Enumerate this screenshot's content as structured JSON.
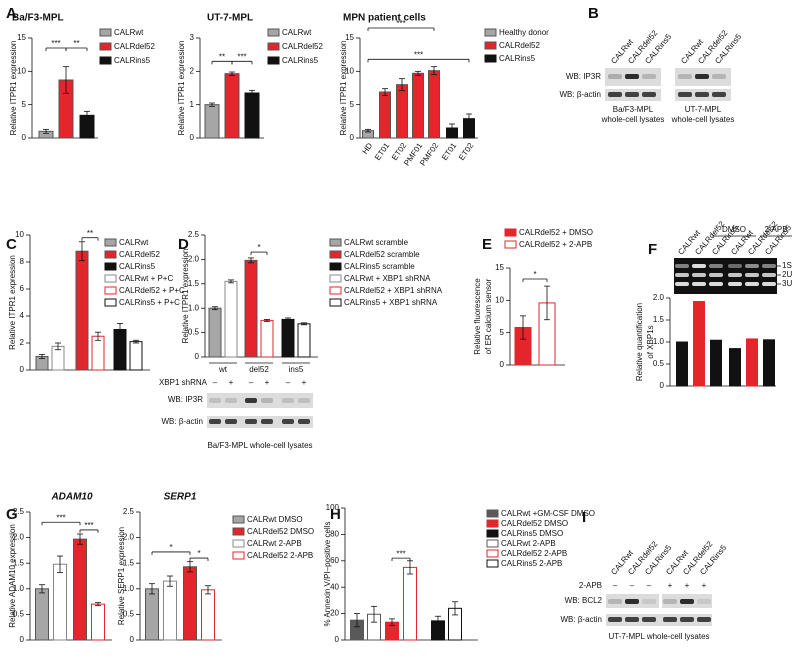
{
  "panel_letters": [
    "A",
    "B",
    "C",
    "D",
    "E",
    "F",
    "G",
    "H",
    "I"
  ],
  "chart_data": [
    {
      "type": "bar",
      "title": "Ba/F3-MPL",
      "ylabel": "Relative ITPR1 expression",
      "ylim": [
        0,
        15
      ],
      "yticks": [
        0,
        5,
        10,
        15
      ],
      "values": [
        1.0,
        8.7,
        3.4
      ],
      "errors": [
        0.3,
        2.0,
        0.6
      ],
      "fills": [
        "#a6a6a6",
        "#e3262b",
        "#111111"
      ],
      "strokes": [
        "#555555",
        "#555555",
        "#111111"
      ],
      "legend": [
        {
          "name": "CALRwt",
          "fill": "#a6a6a6",
          "stroke": "#555555"
        },
        {
          "name": "CALRdel52",
          "fill": "#e3262b",
          "stroke": "#555555"
        },
        {
          "name": "CALRins5",
          "fill": "#111111",
          "stroke": "#111111"
        }
      ],
      "brackets": [
        {
          "from": 0,
          "to": 1,
          "at": 13.5,
          "label": "***"
        },
        {
          "from": 1,
          "to": 2,
          "at": 13.5,
          "label": "**"
        }
      ]
    },
    {
      "type": "bar",
      "title": "UT-7-MPL",
      "ylabel": "Relative ITPR1 expression",
      "ylim": [
        0,
        3
      ],
      "yticks": [
        0,
        1,
        2,
        3
      ],
      "values": [
        1.0,
        1.93,
        1.35
      ],
      "errors": [
        0.05,
        0.05,
        0.08
      ],
      "fills": [
        "#a6a6a6",
        "#e3262b",
        "#111111"
      ],
      "strokes": [
        "#555555",
        "#555555",
        "#111111"
      ],
      "legend": [
        {
          "name": "CALRwt",
          "fill": "#a6a6a6",
          "stroke": "#555555"
        },
        {
          "name": "CALRdel52",
          "fill": "#e3262b",
          "stroke": "#555555"
        },
        {
          "name": "CALRins5",
          "fill": "#111111",
          "stroke": "#111111"
        }
      ],
      "brackets": [
        {
          "from": 0,
          "to": 1,
          "at": 2.3,
          "label": "**"
        },
        {
          "from": 1,
          "to": 2,
          "at": 2.3,
          "label": "***"
        }
      ]
    },
    {
      "type": "bar",
      "title": "MPN patient cells",
      "ylabel": "Relative ITPR1 expression",
      "ylim": [
        0,
        15
      ],
      "yticks": [
        0,
        5,
        10,
        15
      ],
      "categories": [
        "HD",
        "ET01",
        "ET02",
        "PMF01",
        "PMF02",
        "ET01",
        "ET02"
      ],
      "values": [
        1.1,
        6.9,
        8.0,
        9.7,
        10.1,
        1.5,
        2.9
      ],
      "errors": [
        0.2,
        0.5,
        0.9,
        0.3,
        0.6,
        0.6,
        0.7
      ],
      "fills": [
        "#a6a6a6",
        "#e3262b",
        "#e3262b",
        "#e3262b",
        "#e3262b",
        "#111111",
        "#111111"
      ],
      "strokes": [
        "#555555",
        "#555555",
        "#555555",
        "#555555",
        "#555555",
        "#111111",
        "#111111"
      ],
      "legend": [
        {
          "name": "Healthy donor",
          "fill": "#a6a6a6",
          "stroke": "#555555"
        },
        {
          "name": "CALRdel52",
          "fill": "#e3262b",
          "stroke": "#555555"
        },
        {
          "name": "CALRins5",
          "fill": "#111111",
          "stroke": "#111111"
        }
      ],
      "brackets": [
        {
          "from": 0,
          "to": 4,
          "at": 16.5,
          "label": "***"
        },
        {
          "from": 0,
          "to": 6,
          "at": 11.8,
          "label": "***"
        }
      ]
    },
    {
      "type": "bar",
      "ylabel": "Relative ITPR1 expression",
      "ylim": [
        0,
        10
      ],
      "yticks": [
        0,
        2,
        4,
        6,
        8,
        10
      ],
      "values": [
        1.0,
        1.75,
        8.8,
        2.5,
        3.0,
        2.1
      ],
      "errors": [
        0.15,
        0.25,
        0.7,
        0.3,
        0.45,
        0.1
      ],
      "fills": [
        "#a6a6a6",
        "#ffffff",
        "#e3262b",
        "#ffffff",
        "#111111",
        "#ffffff"
      ],
      "strokes": [
        "#555555",
        "#888888",
        "#555555",
        "#e3262b",
        "#111111",
        "#111111"
      ],
      "legend": [
        {
          "name": "CALRwt",
          "fill": "#a6a6a6",
          "stroke": "#555555"
        },
        {
          "name": "CALRdel52",
          "fill": "#e3262b",
          "stroke": "#555555"
        },
        {
          "name": "CALRins5",
          "fill": "#111111",
          "stroke": "#111111"
        },
        {
          "name": "CALRwt + P+C",
          "fill": "#ffffff",
          "stroke": "#888888"
        },
        {
          "name": "CALRdel52 + P+C",
          "fill": "#ffffff",
          "stroke": "#e3262b"
        },
        {
          "name": "CALRins5 + P+C",
          "fill": "#ffffff",
          "stroke": "#111111"
        }
      ],
      "brackets": [
        {
          "from": 2,
          "to": 3,
          "at": 9.8,
          "label": "**"
        }
      ]
    },
    {
      "type": "bar",
      "ylabel": "Relative ITPR1 expression",
      "ylim": [
        0,
        2.5
      ],
      "yticks": [
        0,
        0.5,
        {
          "value": 1,
          "label": "1.0"
        },
        1.5,
        {
          "value": 2,
          "label": "2.0"
        },
        2.5
      ],
      "values": [
        1.0,
        1.55,
        1.98,
        0.75,
        0.77,
        0.68
      ],
      "errors": [
        0.03,
        0.03,
        0.05,
        0.02,
        0.03,
        0.02
      ],
      "fills": [
        "#a6a6a6",
        "#ffffff",
        "#e3262b",
        "#ffffff",
        "#111111",
        "#ffffff"
      ],
      "strokes": [
        "#555555",
        "#888888",
        "#555555",
        "#e3262b",
        "#111111",
        "#111111"
      ],
      "legend": [
        {
          "name": "CALRwt scramble",
          "fill": "#a6a6a6",
          "stroke": "#555555"
        },
        {
          "name": "CALRdel52 scramble",
          "fill": "#e3262b",
          "stroke": "#555555"
        },
        {
          "name": "CALRins5 scramble",
          "fill": "#111111",
          "stroke": "#111111"
        },
        {
          "name": "CALRwt + XBP1 shRNA",
          "fill": "#ffffff",
          "stroke": "#888888"
        },
        {
          "name": "CALRdel52 + XBP1 shRNA",
          "fill": "#ffffff",
          "stroke": "#e3262b"
        },
        {
          "name": "CALRins5 + XBP1 shRNA",
          "fill": "#ffffff",
          "stroke": "#111111"
        }
      ],
      "brackets": [
        {
          "from": 2,
          "to": 3,
          "at": 2.15,
          "label": "*"
        }
      ],
      "group_labels": [
        "wt",
        "del52",
        "ins5"
      ],
      "sub_label": "XBP1 shRNA",
      "sub_signs": [
        "–",
        "+",
        "–",
        "+",
        "–",
        "+"
      ]
    },
    {
      "type": "bar",
      "ylabel": [
        "Relative fluorescence",
        "of ER calcium sensor"
      ],
      "ylim": [
        0,
        15
      ],
      "yticks": [
        0,
        5,
        10,
        15
      ],
      "values": [
        5.8,
        9.6
      ],
      "errors": [
        1.8,
        2.6
      ],
      "fills": [
        "#e3262b",
        "#ffffff"
      ],
      "strokes": [
        "#e3262b",
        "#e3262b"
      ],
      "legend": [
        {
          "name": "CALRdel52 + DMSO",
          "fill": "#e3262b",
          "stroke": "#e3262b"
        },
        {
          "name": "CALRdel52 + 2-APB",
          "fill": "#ffffff",
          "stroke": "#e3262b"
        }
      ],
      "brackets": [
        {
          "from": 0,
          "to": 1,
          "at": 13.3,
          "label": "*"
        }
      ]
    },
    {
      "type": "bar",
      "ylabel": [
        "Relative quantification",
        "of XBP1s"
      ],
      "ylim": [
        0,
        2
      ],
      "yticks": [
        0,
        0.5,
        {
          "value": 1,
          "label": "1.0"
        },
        1.5,
        {
          "value": 2,
          "label": "2.0"
        }
      ],
      "values": [
        1.0,
        1.92,
        1.04,
        0.85,
        1.07,
        1.05
      ],
      "fills": [
        "#111111",
        "#e3262b",
        "#111111",
        "#111111",
        "#e3262b",
        "#111111"
      ],
      "strokes": [
        "#111111",
        "#e3262b",
        "#111111",
        "#111111",
        "#e3262b",
        "#111111"
      ]
    },
    {
      "type": "bar",
      "title": "ADAM10",
      "ylabel": "Relative ADAM10 expression",
      "ylim": [
        0,
        2.5
      ],
      "yticks": [
        0,
        0.5,
        {
          "value": 1,
          "label": "1.0"
        },
        1.5,
        {
          "value": 2,
          "label": "2.0"
        },
        2.5
      ],
      "values": [
        1.0,
        1.48,
        1.97,
        0.7
      ],
      "errors": [
        0.08,
        0.16,
        0.1,
        0.03
      ],
      "fills": [
        "#a6a6a6",
        "#ffffff",
        "#e3262b",
        "#ffffff"
      ],
      "strokes": [
        "#555555",
        "#888888",
        "#555555",
        "#e3262b"
      ],
      "brackets": [
        {
          "from": 0,
          "to": 2,
          "at": 2.3,
          "label": "***"
        },
        {
          "from": 2,
          "to": 3,
          "at": 2.15,
          "label": "***"
        }
      ]
    },
    {
      "type": "bar",
      "title": "SERP1",
      "ylabel": "Relative SERP1 expression",
      "ylim": [
        0,
        2.5
      ],
      "yticks": [
        0,
        0.5,
        {
          "value": 1,
          "label": "1.0"
        },
        1.5,
        {
          "value": 2,
          "label": "2.0"
        },
        2.5
      ],
      "values": [
        1.0,
        1.15,
        1.43,
        0.98
      ],
      "errors": [
        0.1,
        0.1,
        0.1,
        0.08
      ],
      "fills": [
        "#a6a6a6",
        "#ffffff",
        "#e3262b",
        "#ffffff"
      ],
      "strokes": [
        "#555555",
        "#888888",
        "#555555",
        "#e3262b"
      ],
      "legend": [
        {
          "name": "CALRwt DMSO",
          "fill": "#a6a6a6",
          "stroke": "#555555"
        },
        {
          "name": "CALRdel52 DMSO",
          "fill": "#e3262b",
          "stroke": "#555555"
        },
        {
          "name": "CALRwt 2-APB",
          "fill": "#ffffff",
          "stroke": "#888888"
        },
        {
          "name": "CALRdel52 2-APB",
          "fill": "#ffffff",
          "stroke": "#e3262b"
        }
      ],
      "brackets": [
        {
          "from": 0,
          "to": 2,
          "at": 1.72,
          "label": "*"
        },
        {
          "from": 2,
          "to": 3,
          "at": 1.6,
          "label": "*"
        }
      ]
    },
    {
      "type": "bar",
      "ylabel": "% Annexin V/PI–positive cells",
      "ylim": [
        0,
        100
      ],
      "yticks": [
        0,
        20,
        40,
        60,
        80,
        100
      ],
      "values": [
        15,
        19.5,
        13.5,
        55,
        14.5,
        24
      ],
      "errors": [
        5,
        6,
        2.5,
        5,
        3.5,
        5
      ],
      "fills": [
        "#595959",
        "#ffffff",
        "#e3262b",
        "#ffffff",
        "#111111",
        "#ffffff"
      ],
      "strokes": [
        "#595959",
        "#595959",
        "#e3262b",
        "#e3262b",
        "#111111",
        "#111111"
      ],
      "legend": [
        {
          "name": "CALRwt +GM-CSF DMSO",
          "fill": "#595959",
          "stroke": "#595959"
        },
        {
          "name": "CALRdel52 DMSO",
          "fill": "#e3262b",
          "stroke": "#e3262b"
        },
        {
          "name": "CALRins5 DMSO",
          "fill": "#111111",
          "stroke": "#111111"
        },
        {
          "name": "CALRwt 2-APB",
          "fill": "#ffffff",
          "stroke": "#595959"
        },
        {
          "name": "CALRdel52 2-APB",
          "fill": "#ffffff",
          "stroke": "#e3262b"
        },
        {
          "name": "CALRins5 2-APB",
          "fill": "#ffffff",
          "stroke": "#111111"
        }
      ],
      "brackets": [
        {
          "from": 2,
          "to": 3,
          "at": 62,
          "label": "***"
        }
      ]
    }
  ],
  "blots": {
    "B": {
      "lanes": [
        "CALRwt",
        "CALRdel52",
        "CALRins5",
        "CALRwt",
        "CALRdel52",
        "CALRins5"
      ],
      "rows": [
        "WB: IP3R",
        "WB: β-actin"
      ],
      "captions": [
        [
          "Ba/F3-MPL",
          "whole-cell lysates"
        ],
        [
          "UT-7-MPL",
          "whole-cell lysates"
        ]
      ]
    },
    "D": {
      "rows": [
        "WB: IP3R",
        "WB: β-actin"
      ],
      "caption": "Ba/F3-MPL whole-cell lysates"
    },
    "F": {
      "lanes": [
        "CALRwt",
        "CALRdel52",
        "CALRins5",
        "CALRwt",
        "CALRdel52",
        "CALRins5"
      ],
      "conditions": [
        "DMSO",
        "2-APB"
      ],
      "bands": [
        "1S",
        "2U",
        "3U"
      ]
    },
    "I": {
      "lanes": [
        "CALRwt",
        "CALRdel52",
        "CALRins5",
        "CALRwt",
        "CALRdel52",
        "CALRins5"
      ],
      "treatment": "2-APB",
      "signs": [
        "–",
        "–",
        "–",
        "+",
        "+",
        "+"
      ],
      "rows": [
        "WB: BCL2",
        "WB: β-actin"
      ],
      "caption": "UT-7-MPL whole-cell lysates"
    }
  }
}
